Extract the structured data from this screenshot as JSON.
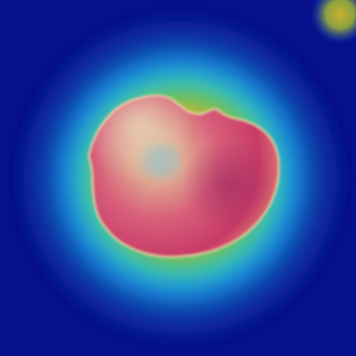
{
  "image": {
    "kind": "heatmap-overlay",
    "subject": "object-blob",
    "colors": {
      "background": "#05108a",
      "heat_outer": "#1e7fd0",
      "heat_mid_cyan": "#39c8c4",
      "heat_green": "#5cc25a",
      "heat_yellow": "#c8c23a",
      "heat_orange": "#d88a2a",
      "object_pink": "#d8607a",
      "object_magenta": "#c83a6a",
      "object_peach": "#e8b08a",
      "object_center": "#a8c0b8",
      "object_rim": "#f0d8b0",
      "corner_yellow": "#c8b030"
    }
  }
}
